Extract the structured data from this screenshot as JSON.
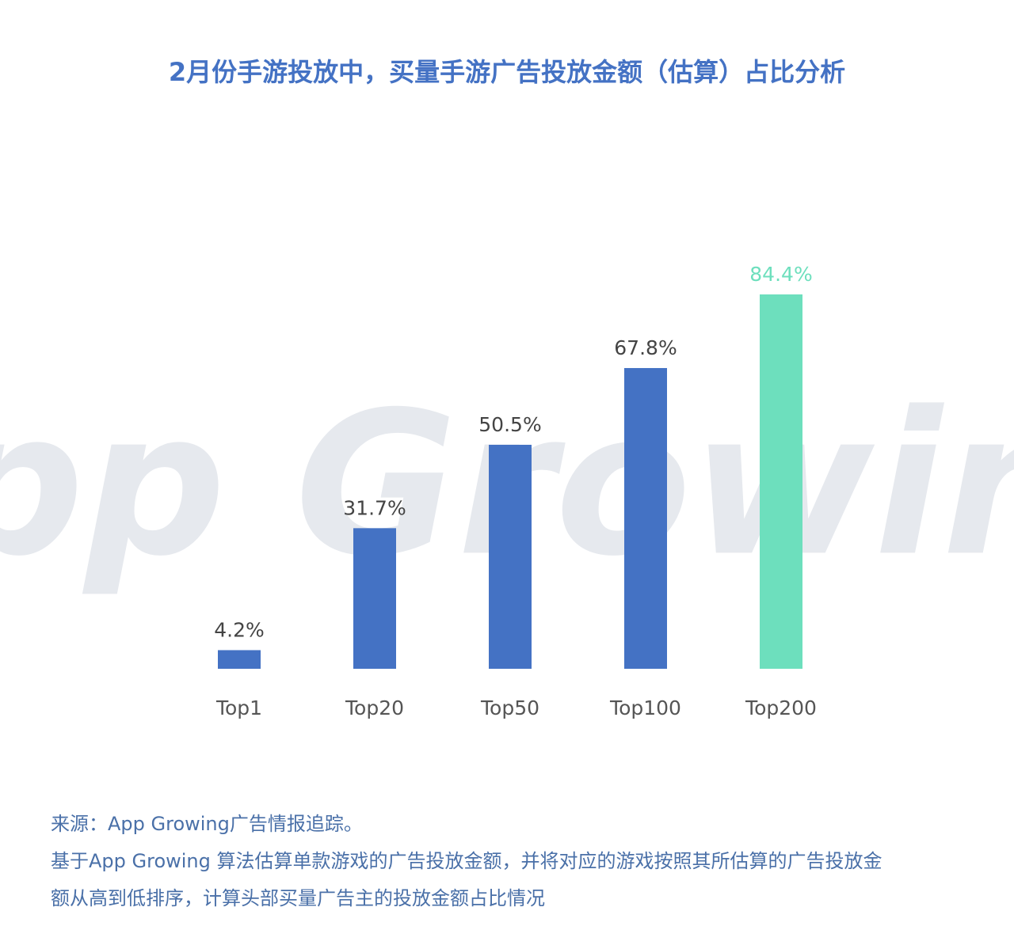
{
  "chart_data": {
    "type": "bar",
    "title": "2月份手游投放中，买量手游广告投放金额（估算）占比分析",
    "watermark": "App Growing",
    "categories": [
      "Top1",
      "Top20",
      "Top50",
      "Top100",
      "Top200"
    ],
    "values": [
      4.2,
      31.7,
      50.5,
      67.8,
      84.4
    ],
    "value_labels": [
      "4.2%",
      "31.7%",
      "50.5%",
      "67.8%",
      "84.4%"
    ],
    "colors": [
      "#4472c4",
      "#4472c4",
      "#4472c4",
      "#4472c4",
      "#6ddfbd"
    ],
    "value_label_colors": [
      "#444444",
      "#444444",
      "#444444",
      "#444444",
      "#6ddfbd"
    ],
    "notes": [
      "来源：App Growing广告情报追踪。",
      "基于App Growing 算法估算单款游戏的广告投放金额，并将对应的游戏按照其所估算的广告投放金",
      "额从高到低排序，计算头部买量广告主的投放金额占比情况"
    ]
  }
}
